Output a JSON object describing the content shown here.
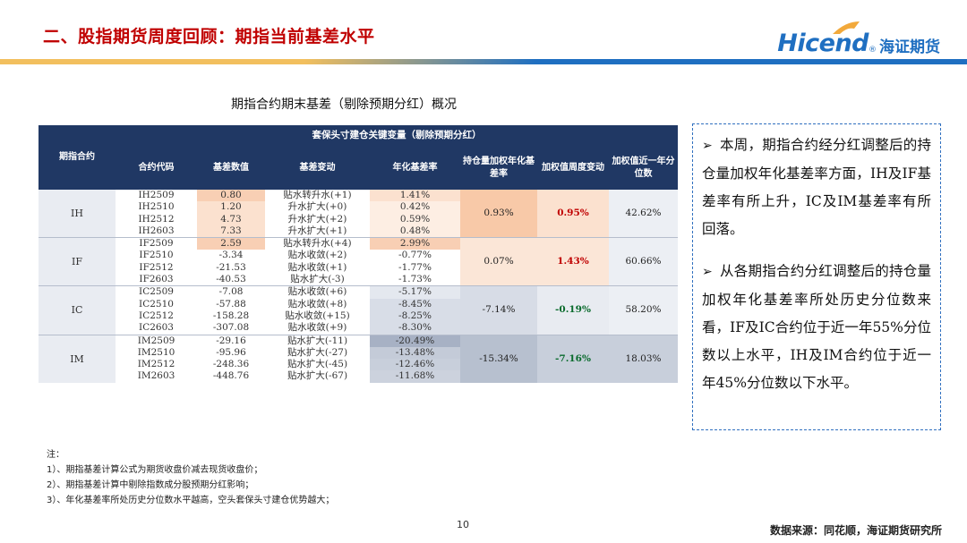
{
  "header": {
    "title": "二、股指期货周度回顾：期指当前基差水平",
    "logo_en": "Hicend",
    "logo_reg": "®",
    "logo_cn": "海证期货"
  },
  "table": {
    "caption": "期指合约期末基差（剔除预期分红）概况",
    "header_main_left": "期指合约",
    "header_main_span": "套保头寸建仓关键变量（剔除预期分红）",
    "columns": [
      "合约代码",
      "基差数值",
      "基差变动",
      "年化基差率",
      "持仓量加权年化基差率",
      "加权值周度变动",
      "加权值近一年分位数"
    ],
    "groups": [
      {
        "name": "IH",
        "weighted": "0.93%",
        "weekly_change": "0.95%",
        "percentile": "42.62%",
        "rows": [
          {
            "code": "IH2509",
            "basis": "0.80",
            "change": "贴水转升水(+1)",
            "rate": "1.41%"
          },
          {
            "code": "IH2510",
            "basis": "1.20",
            "change": "升水扩大(+0)",
            "rate": "0.42%"
          },
          {
            "code": "IH2512",
            "basis": "4.73",
            "change": "升水扩大(+2)",
            "rate": "0.59%"
          },
          {
            "code": "IH2603",
            "basis": "7.33",
            "change": "升水扩大(+1)",
            "rate": "0.48%"
          }
        ]
      },
      {
        "name": "IF",
        "weighted": "0.07%",
        "weekly_change": "1.43%",
        "percentile": "60.66%",
        "rows": [
          {
            "code": "IF2509",
            "basis": "2.59",
            "change": "贴水转升水(+4)",
            "rate": "2.99%"
          },
          {
            "code": "IF2510",
            "basis": "-3.34",
            "change": "贴水收敛(+2)",
            "rate": "-0.77%"
          },
          {
            "code": "IF2512",
            "basis": "-21.53",
            "change": "贴水收敛(+1)",
            "rate": "-1.77%"
          },
          {
            "code": "IF2603",
            "basis": "-40.53",
            "change": "贴水扩大(-3)",
            "rate": "-1.73%"
          }
        ]
      },
      {
        "name": "IC",
        "weighted": "-7.14%",
        "weekly_change": "-0.19%",
        "percentile": "58.20%",
        "rows": [
          {
            "code": "IC2509",
            "basis": "-7.08",
            "change": "贴水收敛(+6)",
            "rate": "-5.17%"
          },
          {
            "code": "IC2510",
            "basis": "-57.88",
            "change": "贴水收敛(+8)",
            "rate": "-8.45%"
          },
          {
            "code": "IC2512",
            "basis": "-158.28",
            "change": "贴水收敛(+15)",
            "rate": "-8.25%"
          },
          {
            "code": "IC2603",
            "basis": "-307.08",
            "change": "贴水收敛(+9)",
            "rate": "-8.30%"
          }
        ]
      },
      {
        "name": "IM",
        "weighted": "-15.34%",
        "weekly_change": "-7.16%",
        "percentile": "18.03%",
        "rows": [
          {
            "code": "IM2509",
            "basis": "-29.16",
            "change": "贴水扩大(-11)",
            "rate": "-20.49%"
          },
          {
            "code": "IM2510",
            "basis": "-95.96",
            "change": "贴水扩大(-27)",
            "rate": "-13.48%"
          },
          {
            "code": "IM2512",
            "basis": "-248.36",
            "change": "贴水扩大(-45)",
            "rate": "-12.46%"
          },
          {
            "code": "IM2603",
            "basis": "-448.76",
            "change": "贴水扩大(-67)",
            "rate": "-11.68%"
          }
        ]
      }
    ],
    "colors": {
      "header_bg": "#203864",
      "weekly_up": "#c00000",
      "weekly_down": "#0a6b2d"
    }
  },
  "commentary": {
    "bullet_glyph": "➢",
    "p1": "本周，期指合约经分红调整后的持仓量加权年化基差率方面，IH及IF基差率有所上升，IC及IM基差率有所回落。",
    "p2": "从各期指合约分红调整后的持仓量加权年化基差率所处历史分位数来看，IF及IC合约位于近一年55%分位数以上水平，IH及IM合约位于近一年45%分位数以下水平。"
  },
  "notes": {
    "label": "注：",
    "items": [
      "1）、期指基差计算公式为期货收盘价减去现货收盘价；",
      "2）、期指基差计算中剔除指数成分股预期分红影响；",
      "3）、年化基差率所处历史分位数水平越高，空头套保头寸建仓优势越大；"
    ]
  },
  "footer": {
    "page_number": "10",
    "source": "数据来源：同花顺，海证期货研究所"
  }
}
